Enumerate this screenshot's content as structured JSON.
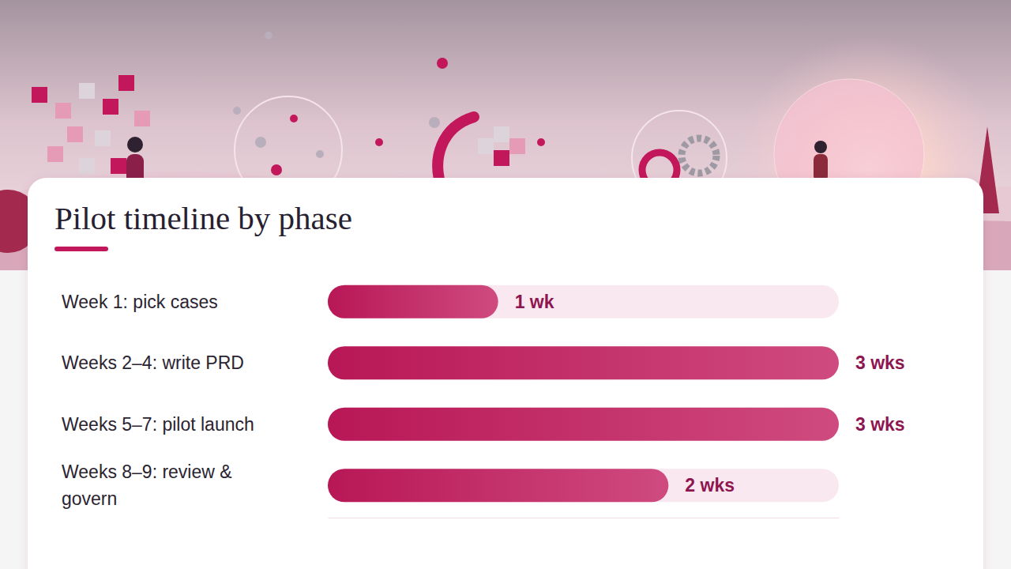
{
  "chart_data": {
    "type": "bar",
    "orientation": "horizontal",
    "title": "Pilot timeline by phase",
    "categories": [
      "Week 1: pick cases",
      "Weeks 2–4: write PRD",
      "Weeks 5–7: pilot launch",
      "Weeks 8–9: review & govern"
    ],
    "values": [
      1,
      3,
      3,
      2
    ],
    "value_labels": [
      "1 wk",
      "3 wks",
      "3 wks",
      "2 wks"
    ],
    "data_labels": true,
    "color": "#c2185b",
    "xlim": [
      0,
      3
    ],
    "xticks": [],
    "tick_labels": "y",
    "grid": false
  }
}
